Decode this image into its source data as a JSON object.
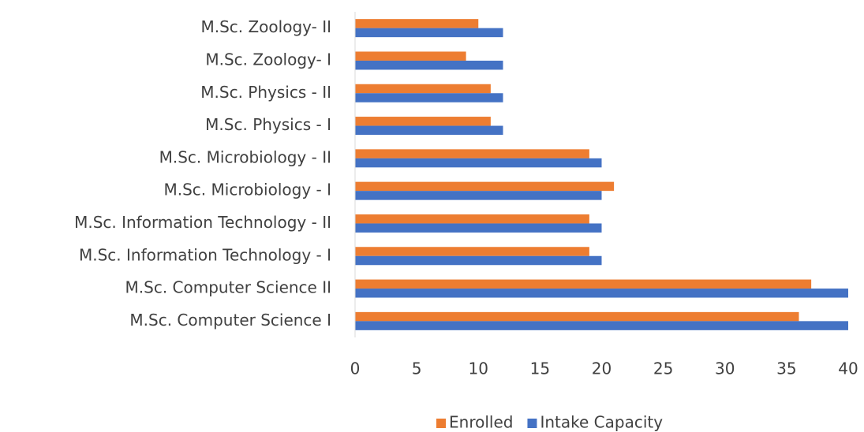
{
  "chart_data": {
    "type": "hbar",
    "categories": [
      "M.Sc. Computer Science I",
      "M.Sc. Computer Science II",
      "M.Sc. Information Technology - I",
      "M.Sc. Information Technology - II",
      "M.Sc. Microbiology - I",
      "M.Sc. Microbiology - II",
      "M.Sc. Physics - I",
      "M.Sc. Physics - II",
      "M.Sc. Zoology- I",
      "M.Sc. Zoology- II"
    ],
    "series": [
      {
        "name": "Enrolled",
        "color": "#ed7d31",
        "values": [
          36,
          37,
          19,
          19,
          21,
          19,
          11,
          11,
          9,
          10
        ]
      },
      {
        "name": "Intake Capacity",
        "color": "#4472c4",
        "values": [
          40,
          40,
          20,
          20,
          20,
          20,
          12,
          12,
          12,
          12
        ]
      }
    ],
    "xlim": [
      0,
      40
    ],
    "xticks": [
      0,
      5,
      10,
      15,
      20,
      25,
      30,
      35,
      40
    ],
    "grid": false,
    "legend": "bottom"
  }
}
